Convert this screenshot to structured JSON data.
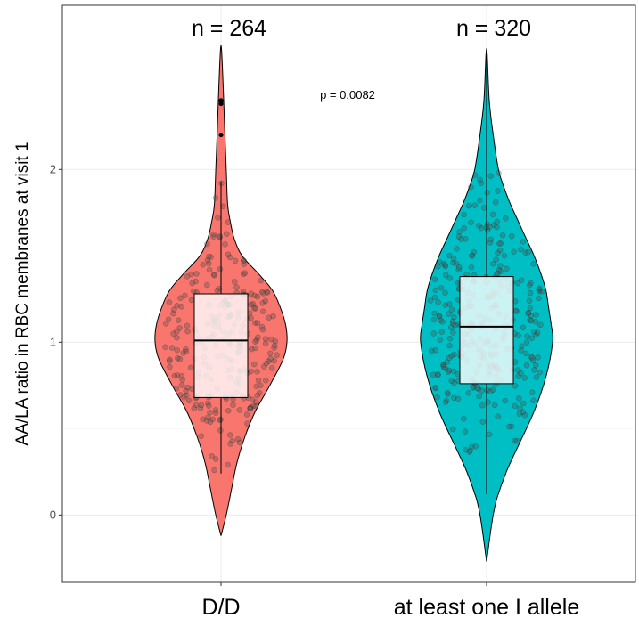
{
  "chart_data": {
    "type": "violin",
    "title": "",
    "xlabel": "",
    "ylabel": "AA/LA ratio in RBC membranes at visit 1",
    "categories": [
      "D/D",
      "at least one I allele"
    ],
    "colors": [
      "#F8766D",
      "#00BFC4"
    ],
    "count_labels": [
      "n = 264",
      "n = 320"
    ],
    "annotation": "p = 0.0082",
    "ylim": [
      -0.39,
      2.95
    ],
    "y_ticks": [
      0,
      1,
      2
    ],
    "y_tick_labels": [
      "0",
      "1",
      "2"
    ],
    "grid": true,
    "legend": "none",
    "groups": [
      {
        "name": "D/D",
        "n": 264,
        "violin_range": [
          -0.12,
          2.72
        ],
        "violin_half_width": [
          [
            -0.12,
            0.0
          ],
          [
            0.0,
            0.04
          ],
          [
            0.15,
            0.08
          ],
          [
            0.3,
            0.12
          ],
          [
            0.45,
            0.18
          ],
          [
            0.6,
            0.26
          ],
          [
            0.75,
            0.37
          ],
          [
            0.9,
            0.47
          ],
          [
            1.0,
            0.5
          ],
          [
            1.1,
            0.49
          ],
          [
            1.2,
            0.45
          ],
          [
            1.3,
            0.39
          ],
          [
            1.4,
            0.28
          ],
          [
            1.5,
            0.16
          ],
          [
            1.6,
            0.1
          ],
          [
            1.7,
            0.07
          ],
          [
            1.8,
            0.05
          ],
          [
            2.0,
            0.04
          ],
          [
            2.2,
            0.03
          ],
          [
            2.4,
            0.02
          ],
          [
            2.6,
            0.01
          ],
          [
            2.72,
            0.0
          ]
        ],
        "box": {
          "q1": 0.68,
          "median": 1.01,
          "q3": 1.28,
          "whisker_low": 0.24,
          "whisker_high": 1.93
        },
        "outliers": [
          2.2,
          2.38,
          2.4,
          2.2
        ]
      },
      {
        "name": "at least one I allele",
        "n": 320,
        "violin_range": [
          -0.27,
          2.7
        ],
        "violin_half_width": [
          [
            -0.27,
            0.0
          ],
          [
            -0.1,
            0.03
          ],
          [
            0.0,
            0.05
          ],
          [
            0.1,
            0.08
          ],
          [
            0.25,
            0.15
          ],
          [
            0.4,
            0.24
          ],
          [
            0.6,
            0.36
          ],
          [
            0.8,
            0.45
          ],
          [
            1.0,
            0.5
          ],
          [
            1.1,
            0.49
          ],
          [
            1.2,
            0.47
          ],
          [
            1.3,
            0.45
          ],
          [
            1.4,
            0.41
          ],
          [
            1.5,
            0.36
          ],
          [
            1.6,
            0.3
          ],
          [
            1.7,
            0.24
          ],
          [
            1.8,
            0.18
          ],
          [
            1.9,
            0.13
          ],
          [
            2.0,
            0.09
          ],
          [
            2.2,
            0.05
          ],
          [
            2.4,
            0.02
          ],
          [
            2.7,
            0.0
          ]
        ],
        "box": {
          "q1": 0.76,
          "median": 1.09,
          "q3": 1.38,
          "whisker_low": 0.12,
          "whisker_high": 2.7
        },
        "outliers": []
      }
    ]
  }
}
